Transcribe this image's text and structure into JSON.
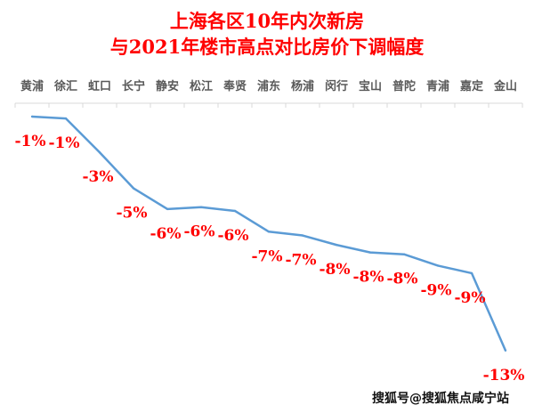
{
  "chart_data": {
    "type": "line",
    "title": [
      "上海各区10年内次新房",
      "与2021年楼市高点对比房价下调幅度"
    ],
    "categories": [
      "黄浦",
      "徐汇",
      "虹口",
      "长宁",
      "静安",
      "松江",
      "奉贤",
      "浦东",
      "杨浦",
      "闵行",
      "宝山",
      "普陀",
      "青浦",
      "嘉定",
      "金山"
    ],
    "values": [
      -0.8,
      -0.9,
      -2.7,
      -4.6,
      -5.7,
      -5.6,
      -5.8,
      -6.9,
      -7.1,
      -7.6,
      -8.0,
      -8.1,
      -8.7,
      -9.1,
      -13.2
    ],
    "data_labels": [
      "-1%",
      "-1%",
      "-3%",
      "-5%",
      "-6%",
      "-6%",
      "-6%",
      "-7%",
      "-7%",
      "-8%",
      "-8%",
      "-8%",
      "-9%",
      "-9%",
      "-13%"
    ],
    "unit": "%",
    "xaxis_position": "top",
    "yaxis_visible": false,
    "grid": false,
    "line_color": "#5b9bd5",
    "label_color": "#ff0000"
  },
  "watermark": "搜狐号@搜狐焦点咸宁站"
}
